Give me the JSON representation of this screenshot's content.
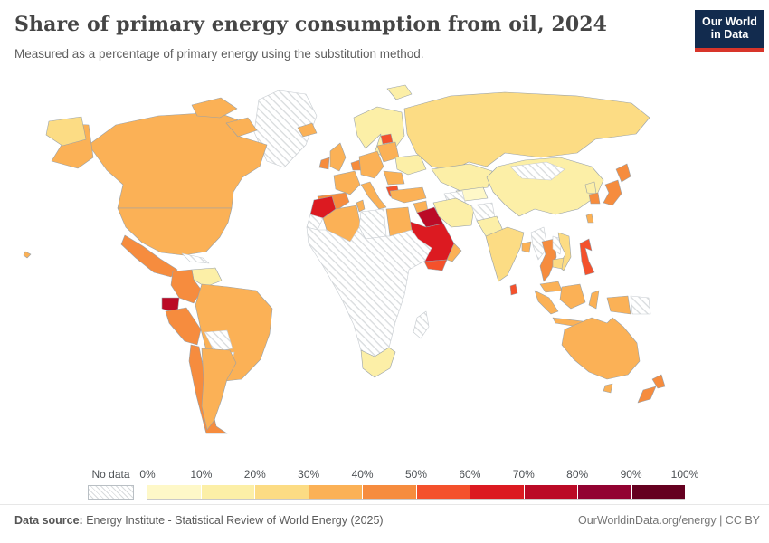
{
  "header": {
    "title": "Share of primary energy consumption from oil, 2024",
    "subtitle": "Measured as a percentage of primary energy using the substitution method."
  },
  "logo": {
    "line1": "Our World",
    "line2": "in Data",
    "bg_color": "#122b4e",
    "accent_color": "#d8352a"
  },
  "legend": {
    "no_data_label": "No data",
    "tick_labels": [
      "0%",
      "10%",
      "20%",
      "30%",
      "40%",
      "50%",
      "60%",
      "70%",
      "80%",
      "90%",
      "100%"
    ]
  },
  "footer": {
    "source_label": "Data source:",
    "source_text": " Energy Institute - Statistical Review of World Energy (2025)",
    "right_text": "OurWorldinData.org/energy | CC BY"
  },
  "chart_data": {
    "type": "heatmap",
    "subtype": "choropleth-world-map",
    "title": "Share of primary energy consumption from oil, 2024",
    "unit": "%",
    "legend_position": "bottom",
    "bins": [
      "0-10%",
      "10-20%",
      "20-30%",
      "30-40%",
      "40-50%",
      "50-60%",
      "60-70%",
      "70-80%",
      "80-90%",
      "90-100%"
    ],
    "bin_colors": [
      "#FEF8C8",
      "#FCEFA7",
      "#FCDC84",
      "#FBB156",
      "#F68C3E",
      "#F4512C",
      "#DC1A21",
      "#BB0A26",
      "#920231",
      "#650020"
    ],
    "no_data_fill": "hatched",
    "countries": [
      {
        "id": "canada",
        "name": "Canada",
        "bin": 3
      },
      {
        "id": "usa",
        "name": "United States",
        "bin": 3
      },
      {
        "id": "greenland",
        "name": "Greenland",
        "bin": "no-data"
      },
      {
        "id": "mexico",
        "name": "Mexico",
        "bin": 4
      },
      {
        "id": "central-america",
        "name": "Central America",
        "bin": 4
      },
      {
        "id": "cuba",
        "name": "Cuba",
        "bin": "no-data"
      },
      {
        "id": "venezuela",
        "name": "Venezuela",
        "bin": 1
      },
      {
        "id": "colombia",
        "name": "Colombia",
        "bin": 4
      },
      {
        "id": "ecuador",
        "name": "Ecuador",
        "bin": 7
      },
      {
        "id": "peru",
        "name": "Peru",
        "bin": 4
      },
      {
        "id": "brazil",
        "name": "Brazil",
        "bin": 3
      },
      {
        "id": "bolivia",
        "name": "Bolivia",
        "bin": "no-data"
      },
      {
        "id": "paraguay",
        "name": "Paraguay",
        "bin": "no-data"
      },
      {
        "id": "chile",
        "name": "Chile",
        "bin": 4
      },
      {
        "id": "argentina",
        "name": "Argentina",
        "bin": 3
      },
      {
        "id": "iceland",
        "name": "Iceland",
        "bin": 3
      },
      {
        "id": "scandinavia",
        "name": "Norway/Sweden/Finland",
        "bin": 1
      },
      {
        "id": "svalbard",
        "name": "Svalbard",
        "bin": 1
      },
      {
        "id": "uk",
        "name": "United Kingdom",
        "bin": 3
      },
      {
        "id": "ireland",
        "name": "Ireland",
        "bin": 4
      },
      {
        "id": "france",
        "name": "France",
        "bin": 3
      },
      {
        "id": "benelux",
        "name": "Belgium/Netherlands",
        "bin": 4
      },
      {
        "id": "spain",
        "name": "Spain",
        "bin": 4
      },
      {
        "id": "central-europe",
        "name": "Germany/Central Europe",
        "bin": 3
      },
      {
        "id": "italy",
        "name": "Italy",
        "bin": 3
      },
      {
        "id": "poland",
        "name": "Poland/Baltics",
        "bin": 3
      },
      {
        "id": "lithuania",
        "name": "Lithuania",
        "bin": 5
      },
      {
        "id": "ukraine",
        "name": "Ukraine",
        "bin": 1
      },
      {
        "id": "balkans",
        "name": "Romania/Balkans",
        "bin": 3
      },
      {
        "id": "greece",
        "name": "Greece",
        "bin": 5
      },
      {
        "id": "russia",
        "name": "Russia",
        "bin": 2
      },
      {
        "id": "kazakhstan",
        "name": "Kazakhstan",
        "bin": 1
      },
      {
        "id": "uzbekistan",
        "name": "Uzbekistan",
        "bin": 0
      },
      {
        "id": "turkmenistan",
        "name": "Turkmenistan",
        "bin": "no-data"
      },
      {
        "id": "turkey",
        "name": "Turkey",
        "bin": 3
      },
      {
        "id": "syria",
        "name": "Syria",
        "bin": 3
      },
      {
        "id": "iraq",
        "name": "Iraq",
        "bin": 7
      },
      {
        "id": "saudi-arabia",
        "name": "Saudi Arabia",
        "bin": 6
      },
      {
        "id": "yemen",
        "name": "Yemen",
        "bin": 5
      },
      {
        "id": "oman",
        "name": "Oman",
        "bin": 3
      },
      {
        "id": "iran",
        "name": "Iran",
        "bin": 1
      },
      {
        "id": "afghanistan",
        "name": "Afghanistan",
        "bin": "no-data"
      },
      {
        "id": "pakistan",
        "name": "Pakistan",
        "bin": 1
      },
      {
        "id": "india",
        "name": "India",
        "bin": 2
      },
      {
        "id": "bangladesh",
        "name": "Bangladesh",
        "bin": 3
      },
      {
        "id": "sri-lanka",
        "name": "Sri Lanka",
        "bin": 5
      },
      {
        "id": "china",
        "name": "China",
        "bin": 1
      },
      {
        "id": "mongolia",
        "name": "Mongolia",
        "bin": "no-data"
      },
      {
        "id": "north-korea",
        "name": "North Korea",
        "bin": 1
      },
      {
        "id": "south-korea",
        "name": "South Korea",
        "bin": 4
      },
      {
        "id": "japan",
        "name": "Japan",
        "bin": 4
      },
      {
        "id": "taiwan",
        "name": "Taiwan",
        "bin": 3
      },
      {
        "id": "myanmar",
        "name": "Myanmar",
        "bin": "no-data"
      },
      {
        "id": "thailand",
        "name": "Thailand",
        "bin": 4
      },
      {
        "id": "laos",
        "name": "Laos",
        "bin": "no-data"
      },
      {
        "id": "vietnam",
        "name": "Vietnam",
        "bin": 2
      },
      {
        "id": "cambodia",
        "name": "Cambodia",
        "bin": 2
      },
      {
        "id": "malaysia",
        "name": "Malaysia",
        "bin": 3
      },
      {
        "id": "philippines",
        "name": "Philippines",
        "bin": 5
      },
      {
        "id": "indonesia",
        "name": "Indonesia",
        "bin": 3
      },
      {
        "id": "papua-new-guinea",
        "name": "Papua New Guinea",
        "bin": "no-data"
      },
      {
        "id": "australia",
        "name": "Australia",
        "bin": 3
      },
      {
        "id": "new-zealand",
        "name": "New Zealand",
        "bin": 4
      },
      {
        "id": "morocco",
        "name": "Morocco",
        "bin": 6
      },
      {
        "id": "western-sahara",
        "name": "Western Sahara",
        "bin": "no-data"
      },
      {
        "id": "algeria",
        "name": "Algeria",
        "bin": 3
      },
      {
        "id": "tunisia",
        "name": "Tunisia",
        "bin": 3
      },
      {
        "id": "libya",
        "name": "Libya",
        "bin": "no-data"
      },
      {
        "id": "egypt",
        "name": "Egypt",
        "bin": 3
      },
      {
        "id": "sub-saharan-africa",
        "name": "Sub-Saharan Africa (most countries)",
        "bin": "no-data"
      },
      {
        "id": "south-africa",
        "name": "South Africa",
        "bin": 1
      },
      {
        "id": "madagascar",
        "name": "Madagascar",
        "bin": "no-data"
      }
    ]
  }
}
